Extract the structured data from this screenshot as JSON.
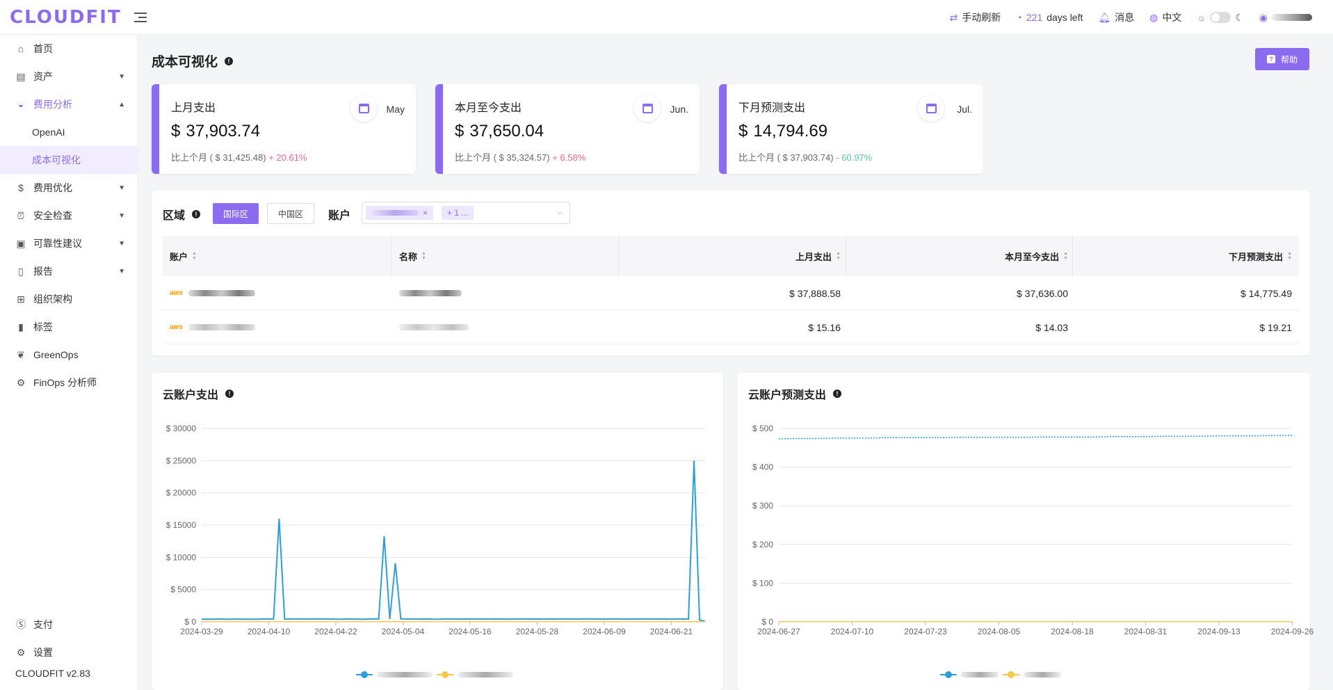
{
  "header": {
    "logo": "CLOUDFIT",
    "refresh": "手动刷新",
    "days_num": "221",
    "days_text": "days left",
    "messages": "消息",
    "language": "中文"
  },
  "sidebar": {
    "items": [
      {
        "label": "首页",
        "icon": "home-icon"
      },
      {
        "label": "资产",
        "icon": "asset-icon"
      },
      {
        "label": "费用分析",
        "icon": "dashboard-icon"
      },
      {
        "label": "OpenAI"
      },
      {
        "label": "成本可视化"
      },
      {
        "label": "费用优化",
        "icon": "dollar-icon"
      },
      {
        "label": "安全检查",
        "icon": "alarm-icon"
      },
      {
        "label": "可靠性建议",
        "icon": "audit-icon"
      },
      {
        "label": "报告",
        "icon": "report-icon"
      },
      {
        "label": "组织架构",
        "icon": "org-icon"
      },
      {
        "label": "标签",
        "icon": "tag-icon"
      },
      {
        "label": "GreenOps",
        "icon": "leaf-icon"
      },
      {
        "label": "FinOps 分析师",
        "icon": "analyst-icon"
      }
    ],
    "bottom": [
      {
        "label": "支付",
        "icon": "payment-icon"
      },
      {
        "label": "设置",
        "icon": "settings-icon"
      }
    ],
    "version": "CLOUDFIT v2.83"
  },
  "page": {
    "title": "成本可视化",
    "help": "帮助"
  },
  "stats": [
    {
      "label": "上月支出",
      "month": "May",
      "currency": "$",
      "value": "37,903.74",
      "compare_prefix": "比上个月 ( $ 31,425.48)",
      "change": "+ 20.61%",
      "trend": "up"
    },
    {
      "label": "本月至今支出",
      "month": "Jun.",
      "currency": "$",
      "value": "37,650.04",
      "compare_prefix": "比上个月 ( $ 35,324.57)",
      "change": "+ 6.58%",
      "trend": "up"
    },
    {
      "label": "下月预测支出",
      "month": "Jul.",
      "currency": "$",
      "value": "14,794.69",
      "compare_prefix": "比上个月 ( $ 37,903.74)",
      "change": "- 60.97%",
      "trend": "down"
    }
  ],
  "filters": {
    "region_label": "区域",
    "region_intl": "国际区",
    "region_cn": "中国区",
    "account_label": "账户",
    "more_tag": "+ 1 ..."
  },
  "table": {
    "headers": [
      "账户",
      "名称",
      "上月支出",
      "本月至今支出",
      "下月预测支出"
    ],
    "rows": [
      {
        "provider": "aws",
        "last": "$ 37,888.58",
        "mtd": "$ 37,636.00",
        "forecast": "$ 14,775.49"
      },
      {
        "provider": "aws",
        "last": "$ 15.16",
        "mtd": "$ 14.03",
        "forecast": "$ 19.21"
      }
    ]
  },
  "colors": {
    "accent": "#8b6cf0",
    "series1": "#2d9fd8",
    "series2": "#f7c948"
  },
  "chart_data": [
    {
      "type": "line",
      "title": "云账户支出",
      "ylabels": [
        "$ 0",
        "$ 5000",
        "$ 10000",
        "$ 15000",
        "$ 20000",
        "$ 25000",
        "$ 30000"
      ],
      "xlabels": [
        "2024-03-29",
        "2024-04-10",
        "2024-04-22",
        "2024-05-04",
        "2024-05-16",
        "2024-05-28",
        "2024-06-09",
        "2024-06-21"
      ],
      "ylim": [
        0,
        30000
      ],
      "series": [
        {
          "values": [
            400,
            420,
            410,
            430,
            420,
            415,
            425,
            430,
            410,
            420,
            400,
            430,
            430,
            440,
            16000,
            420,
            450,
            440,
            460,
            430,
            445,
            450,
            440,
            430,
            420,
            410,
            430,
            440,
            420,
            410,
            430,
            450,
            440,
            13300,
            430,
            9100,
            450,
            440,
            430,
            420,
            440,
            430,
            410,
            420,
            450,
            440,
            430,
            420,
            440,
            430,
            450,
            430,
            420,
            440,
            430,
            420,
            430,
            440,
            450,
            430,
            440,
            430,
            420,
            440,
            430,
            450,
            440,
            430,
            420,
            440,
            450,
            430,
            420,
            430,
            440,
            450,
            430,
            420,
            440,
            430,
            450,
            440,
            430,
            440,
            430,
            420,
            450,
            430,
            440,
            25000,
            300,
            50
          ]
        },
        {
          "values": [
            20,
            20,
            20,
            20,
            20,
            20,
            20,
            20,
            20,
            20,
            20,
            20,
            20,
            20,
            20,
            20,
            20,
            20,
            20,
            20,
            20,
            20,
            20,
            20,
            20,
            20,
            20,
            20,
            20,
            20,
            20,
            20,
            20,
            20,
            20,
            20,
            20,
            20,
            20,
            20,
            20,
            20,
            20,
            20,
            20,
            20,
            20,
            20,
            20,
            20,
            20,
            20,
            20,
            20,
            20,
            20,
            20,
            20,
            20,
            20,
            20,
            20,
            20,
            20,
            20,
            20,
            20,
            20,
            20,
            20,
            20,
            20,
            20,
            20,
            20,
            20,
            20,
            20,
            20,
            20,
            20,
            20,
            20,
            20,
            20,
            20,
            20,
            20,
            20,
            20,
            20,
            20,
            20
          ]
        }
      ]
    },
    {
      "type": "line",
      "title": "云账户预测支出",
      "ylabels": [
        "$ 0",
        "$ 100",
        "$ 200",
        "$ 300",
        "$ 400",
        "$ 500"
      ],
      "xlabels": [
        "2024-06-27",
        "2024-07-10",
        "2024-07-23",
        "2024-08-05",
        "2024-08-18",
        "2024-08-31",
        "2024-09-13",
        "2024-09-26"
      ],
      "ylim": [
        0,
        500
      ],
      "series": [
        {
          "values": [
            473,
            474,
            474,
            475,
            475,
            475,
            476,
            476,
            476,
            476,
            477,
            477,
            477,
            477,
            477,
            478,
            478,
            478,
            478,
            479,
            479,
            479,
            480,
            480,
            480,
            481,
            481,
            481,
            482,
            482
          ]
        },
        {
          "values": [
            0.6,
            0.6,
            0.6,
            0.6,
            0.6,
            0.6,
            0.6,
            0.6,
            0.6,
            0.6,
            0.6,
            0.6,
            0.6,
            0.6,
            0.6,
            0.6,
            0.6,
            0.6,
            0.6,
            0.6,
            0.6,
            0.6,
            0.6,
            0.6,
            0.6,
            0.6,
            0.6,
            0.6,
            0.6,
            0.6
          ]
        }
      ]
    }
  ]
}
